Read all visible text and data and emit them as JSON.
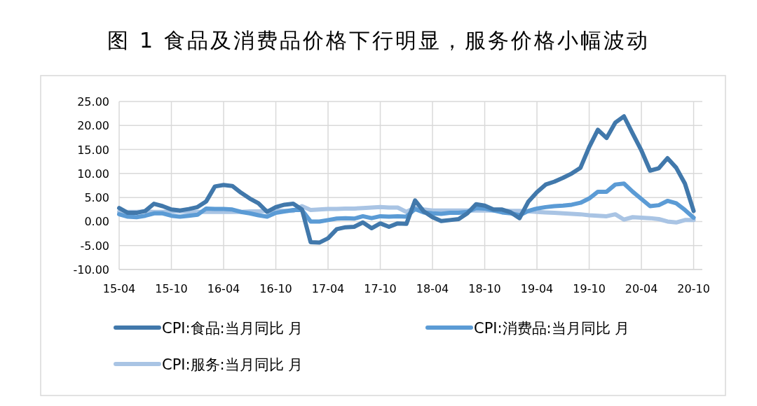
{
  "chart_data": {
    "type": "line",
    "title": "图 1 食品及消费品价格下行明显，服务价格小幅波动",
    "categories": [
      "15-04",
      null,
      null,
      null,
      null,
      null,
      "15-10",
      null,
      null,
      null,
      null,
      null,
      "16-04",
      null,
      null,
      null,
      null,
      null,
      "16-10",
      null,
      null,
      null,
      null,
      null,
      "17-04",
      null,
      null,
      null,
      null,
      null,
      "17-10",
      null,
      null,
      null,
      null,
      null,
      "18-04",
      null,
      null,
      null,
      null,
      null,
      "18-10",
      null,
      null,
      null,
      null,
      null,
      "19-04",
      null,
      null,
      null,
      null,
      null,
      "19-10",
      null,
      null,
      null,
      null,
      null,
      "20-04",
      null,
      null,
      null,
      null,
      null,
      "20-10"
    ],
    "series": [
      {
        "name": "CPI:食品:当月同比 月",
        "color": "#4178ab",
        "values": [
          2.8,
          1.8,
          1.8,
          2.2,
          3.7,
          3.2,
          2.5,
          2.3,
          2.6,
          3.0,
          4.2,
          7.3,
          7.6,
          7.4,
          6.0,
          4.8,
          3.8,
          2.0,
          3.0,
          3.5,
          3.7,
          2.5,
          -4.3,
          -4.4,
          -3.5,
          -1.6,
          -1.2,
          -1.1,
          -0.2,
          -1.4,
          -0.4,
          -1.1,
          -0.4,
          -0.5,
          4.4,
          2.1,
          0.9,
          0.1,
          0.3,
          0.5,
          1.7,
          3.6,
          3.3,
          2.5,
          2.5,
          1.9,
          0.7,
          4.1,
          6.1,
          7.7,
          8.3,
          9.1,
          10.0,
          11.2,
          15.5,
          19.1,
          17.4,
          20.6,
          21.9,
          18.3,
          14.8,
          10.6,
          11.1,
          13.2,
          11.2,
          7.9,
          2.2
        ]
      },
      {
        "name": "CPI:消费品:当月同比 月",
        "color": "#5b9bd5",
        "values": [
          1.5,
          1.0,
          0.9,
          1.2,
          1.7,
          1.7,
          1.2,
          1.0,
          1.2,
          1.4,
          2.7,
          2.6,
          2.6,
          2.5,
          2.0,
          1.7,
          1.3,
          1.0,
          1.8,
          2.1,
          2.4,
          2.4,
          0.0,
          0.0,
          0.3,
          0.6,
          0.7,
          0.6,
          1.1,
          0.7,
          1.1,
          1.0,
          1.1,
          1.0,
          2.6,
          1.9,
          1.7,
          1.6,
          1.8,
          1.8,
          2.0,
          2.8,
          2.7,
          2.3,
          1.9,
          1.7,
          1.3,
          2.2,
          2.7,
          3.0,
          3.2,
          3.3,
          3.5,
          3.9,
          4.8,
          6.2,
          6.2,
          7.7,
          7.9,
          6.2,
          4.7,
          3.2,
          3.4,
          4.3,
          3.8,
          2.4,
          0.8
        ]
      },
      {
        "name": "CPI:服务:当月同比 月",
        "color": "#a9c4e4",
        "values": [
          2.0,
          2.0,
          2.0,
          2.1,
          2.0,
          2.0,
          2.1,
          2.1,
          2.0,
          2.0,
          2.0,
          2.0,
          2.0,
          2.0,
          2.0,
          2.1,
          2.1,
          2.2,
          2.3,
          2.2,
          2.2,
          3.2,
          2.4,
          2.5,
          2.6,
          2.6,
          2.7,
          2.7,
          2.8,
          2.9,
          3.0,
          2.9,
          2.9,
          2.0,
          2.9,
          2.5,
          2.3,
          2.3,
          2.3,
          2.3,
          2.3,
          2.3,
          2.3,
          2.3,
          2.3,
          2.2,
          2.2,
          2.1,
          2.0,
          1.9,
          1.8,
          1.7,
          1.6,
          1.5,
          1.3,
          1.2,
          1.1,
          1.5,
          0.4,
          0.9,
          0.8,
          0.7,
          0.5,
          0.0,
          -0.2,
          0.3,
          0.3
        ]
      }
    ],
    "ylim": [
      -10,
      25
    ],
    "yticks": [
      {
        "value": -10,
        "label": "-10.00"
      },
      {
        "value": -5,
        "label": "-5.00"
      },
      {
        "value": 0,
        "label": "0.00"
      },
      {
        "value": 5,
        "label": "5.00"
      },
      {
        "value": 10,
        "label": "10.00"
      },
      {
        "value": 15,
        "label": "15.00"
      },
      {
        "value": 20,
        "label": "20.00"
      },
      {
        "value": 25,
        "label": "25.00"
      }
    ],
    "grid": true,
    "legend": "bottom",
    "marker": "none",
    "line_style": "solid"
  }
}
